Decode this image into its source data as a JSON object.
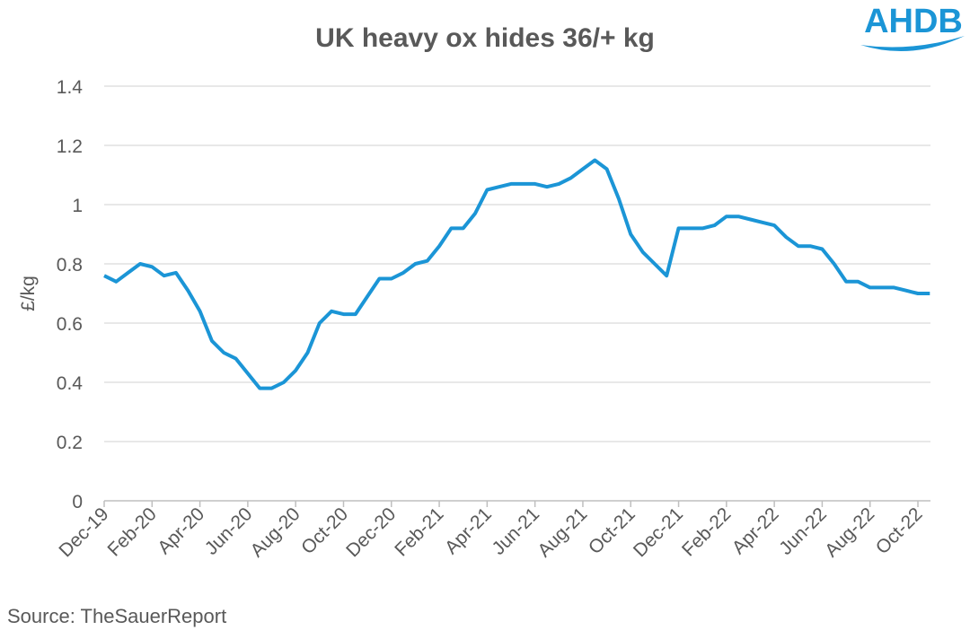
{
  "logo": "AHDB",
  "source": "Source: TheSauerReport",
  "chart_data": {
    "type": "line",
    "title": "UK heavy ox hides 36/+ kg",
    "y_label": "£/kg",
    "categories": [
      "Dec-19",
      null,
      null,
      null,
      "Feb-20",
      null,
      null,
      null,
      "Apr-20",
      null,
      null,
      null,
      "Jun-20",
      null,
      null,
      null,
      "Aug-20",
      null,
      null,
      null,
      "Oct-20",
      null,
      null,
      null,
      "Dec-20",
      null,
      null,
      null,
      "Feb-21",
      null,
      null,
      null,
      "Apr-21",
      null,
      null,
      null,
      "Jun-21",
      null,
      null,
      null,
      "Aug-21",
      null,
      null,
      null,
      "Oct-21",
      null,
      null,
      null,
      "Dec-21",
      null,
      null,
      null,
      "Feb-22",
      null,
      null,
      null,
      "Apr-22",
      null,
      null,
      null,
      "Jun-22",
      null,
      null,
      null,
      "Aug-22",
      null,
      null,
      null,
      "Oct-22",
      null
    ],
    "series": [
      {
        "name": "UK heavy ox hides 36/+ kg",
        "color": "#1b95d6",
        "values": [
          0.76,
          0.74,
          0.77,
          0.8,
          0.79,
          0.76,
          0.77,
          0.71,
          0.64,
          0.54,
          0.5,
          0.48,
          0.43,
          0.38,
          0.38,
          0.4,
          0.44,
          0.5,
          0.6,
          0.64,
          0.63,
          0.63,
          0.69,
          0.75,
          0.75,
          0.77,
          0.8,
          0.81,
          0.86,
          0.92,
          0.92,
          0.97,
          1.05,
          1.06,
          1.07,
          1.07,
          1.07,
          1.06,
          1.07,
          1.09,
          1.12,
          1.15,
          1.12,
          1.02,
          0.9,
          0.84,
          0.8,
          0.76,
          0.92,
          0.92,
          0.92,
          0.93,
          0.96,
          0.96,
          0.95,
          0.94,
          0.93,
          0.89,
          0.86,
          0.86,
          0.85,
          0.8,
          0.74,
          0.74,
          0.72,
          0.72,
          0.72,
          0.71,
          0.7,
          0.7
        ]
      }
    ],
    "ylim": [
      0,
      1.4
    ],
    "yticks": [
      0,
      0.2,
      0.4,
      0.6,
      0.8,
      1,
      1.2,
      1.4
    ],
    "grid": true
  }
}
